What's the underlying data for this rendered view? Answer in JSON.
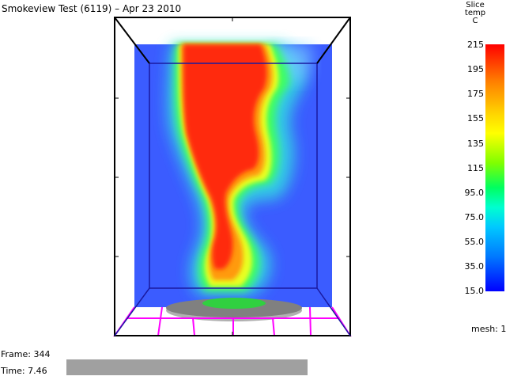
{
  "window": {
    "title": "Smokeview Test (6119) – Apr 23 2010"
  },
  "colorbar": {
    "title_lines": [
      "Slice",
      "temp",
      "C"
    ],
    "ticks": [
      "215",
      "195",
      "175",
      "155",
      "135",
      "115",
      "95.0",
      "75.0",
      "55.0",
      "35.0",
      "15.0"
    ],
    "high_color": "#ff0000",
    "low_color": "#0000ff"
  },
  "mesh_label": "mesh: 1",
  "frame_label": "Frame: 344",
  "time_label": "Time: 7.46",
  "time_progress": 1.0,
  "colors": {
    "background_slice": "#3b5cff",
    "floor_lines": "#ff00ff",
    "burner": "#808080"
  }
}
